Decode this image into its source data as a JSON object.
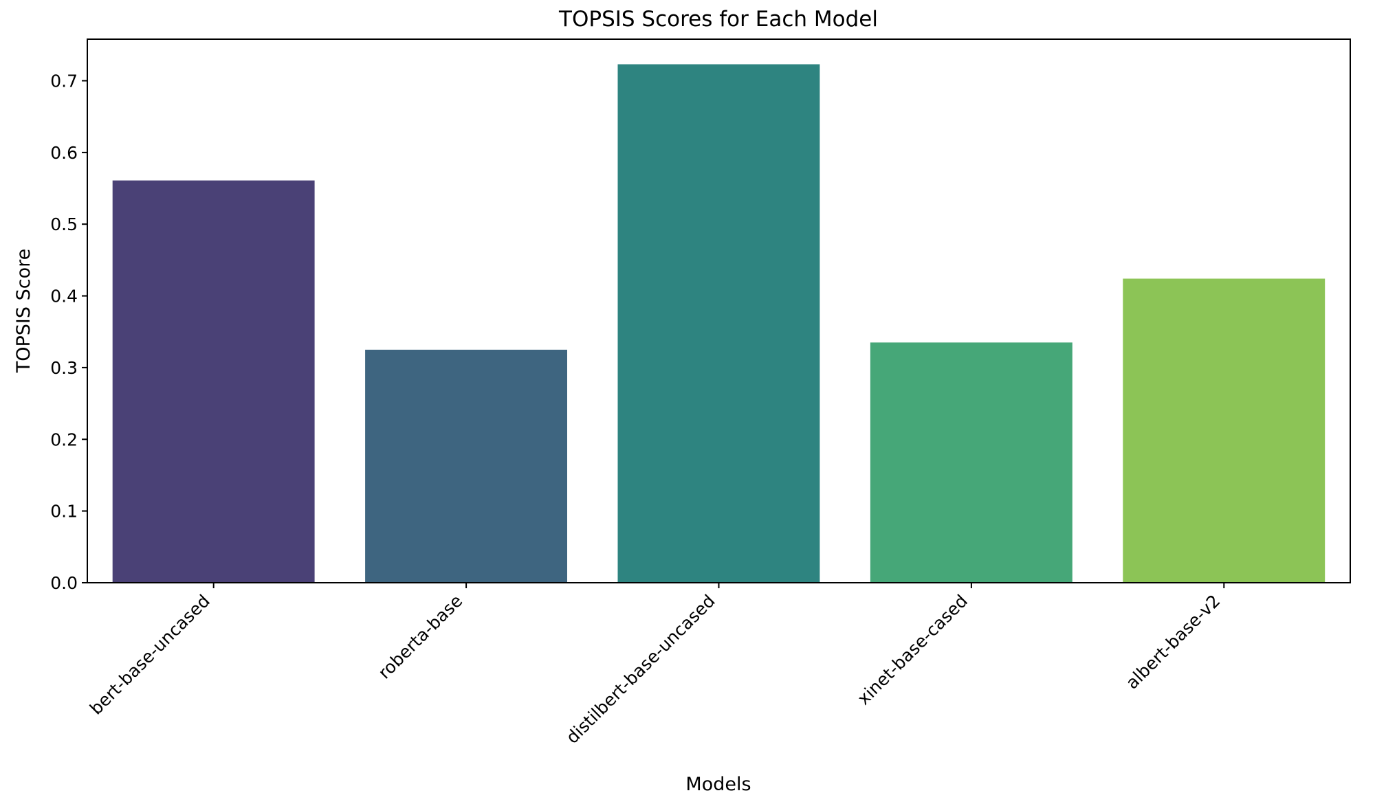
{
  "chart_data": {
    "type": "bar",
    "title": "TOPSIS Scores for Each Model",
    "xlabel": "Models",
    "ylabel": "TOPSIS Score",
    "categories": [
      "bert-base-uncased",
      "roberta-base",
      "distilbert-base-uncased",
      "xinet-base-cased",
      "albert-base-v2"
    ],
    "values": [
      0.561,
      0.325,
      0.723,
      0.335,
      0.424
    ],
    "colors": [
      "#4a4176",
      "#3e6580",
      "#2e8480",
      "#46a778",
      "#8cc456"
    ],
    "ylim": [
      0,
      0.758
    ],
    "yticks": [
      {
        "value": 0.0,
        "label": "0.0"
      },
      {
        "value": 0.1,
        "label": "0.1"
      },
      {
        "value": 0.2,
        "label": "0.2"
      },
      {
        "value": 0.3,
        "label": "0.3"
      },
      {
        "value": 0.4,
        "label": "0.4"
      },
      {
        "value": 0.5,
        "label": "0.5"
      },
      {
        "value": 0.6,
        "label": "0.6"
      },
      {
        "value": 0.7,
        "label": "0.7"
      }
    ],
    "grid": false,
    "legend": "none"
  }
}
